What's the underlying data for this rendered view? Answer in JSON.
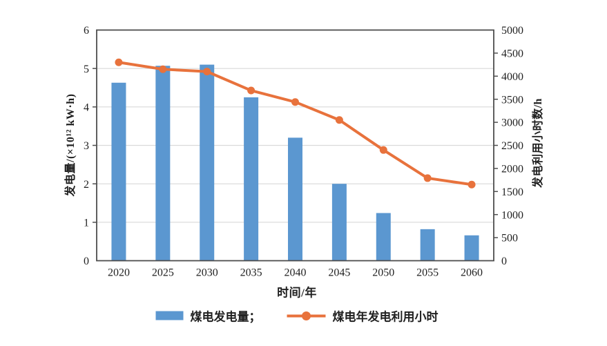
{
  "colors": {
    "bar_blue": "#5b97d0",
    "line_orange": "#e8723c",
    "axis": "#4d4d4d",
    "grid": "#d9d9d9",
    "text": "#1f1f1f",
    "background": "#ffffff"
  },
  "chart_data": {
    "type": "bar+line",
    "categories": [
      "2020",
      "2025",
      "2030",
      "2035",
      "2040",
      "2045",
      "2050",
      "2055",
      "2060"
    ],
    "series": [
      {
        "name": "煤电发电量",
        "type": "bar",
        "axis": "left",
        "color": "#5b97d0",
        "unit": "×10¹² kW·h",
        "values": [
          4.63,
          5.07,
          5.1,
          4.25,
          3.2,
          2.0,
          1.24,
          0.82,
          0.66
        ]
      },
      {
        "name": "煤电年发电利用小时",
        "type": "line",
        "axis": "right",
        "color": "#e8723c",
        "unit": "h",
        "values": [
          4300,
          4150,
          4100,
          3690,
          3440,
          3050,
          2400,
          1790,
          1650
        ]
      }
    ],
    "xlabel": "时间/年",
    "left_axis": {
      "label": "发电量/(×10¹² kW·h)",
      "min": 0,
      "max": 6,
      "step": 1
    },
    "right_axis": {
      "label": "发电利用小时数/h",
      "min": 0,
      "max": 5000,
      "step": 500
    },
    "grid": true,
    "legend_position": "bottom",
    "legend": [
      {
        "label": "煤电发电量；",
        "marker": "rect"
      },
      {
        "label": "煤电年发电利用小时",
        "marker": "line-dot"
      }
    ]
  }
}
